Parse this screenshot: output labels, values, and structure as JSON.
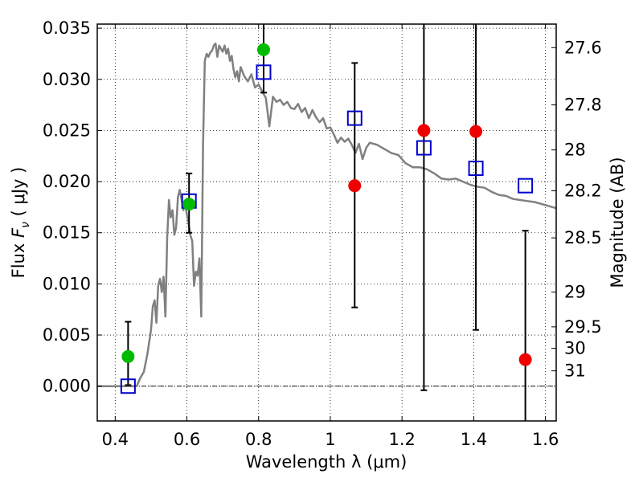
{
  "chart_data": {
    "type": "scatter",
    "xlabel": "Wavelength  λ (μm)",
    "ylabel": "Flux  F_ν ( μJy )",
    "ylabel_parts": {
      "prefix": "Flux  ",
      "symbol": "F",
      "subscript": "ν",
      "suffix": "  ( μJy )"
    },
    "y2label": "Magnitude (AB)",
    "xlim": [
      0.35,
      1.63
    ],
    "ylim": [
      -0.0034,
      0.0354
    ],
    "grid": true,
    "x_ticks": [
      0.4,
      0.6,
      0.8,
      1.0,
      1.2,
      1.4,
      1.6
    ],
    "x_tick_labels": [
      "0.4",
      "0.6",
      "0.8",
      "1",
      "1.2",
      "1.4",
      "1.6"
    ],
    "y_ticks": [
      0.0,
      0.005,
      0.01,
      0.015,
      0.02,
      0.025,
      0.03,
      0.035
    ],
    "y_tick_labels": [
      "0.000",
      "0.005",
      "0.010",
      "0.015",
      "0.020",
      "0.025",
      "0.030",
      "0.035"
    ],
    "y2_ticks": [
      {
        "label": "27.6",
        "flux": 0.0331
      },
      {
        "label": "27.8",
        "flux": 0.0275
      },
      {
        "label": "28",
        "flux": 0.0231
      },
      {
        "label": "28.2",
        "flux": 0.0191
      },
      {
        "label": "28.5",
        "flux": 0.0145
      },
      {
        "label": "29",
        "flux": 0.0092
      },
      {
        "label": "29.5",
        "flux": 0.0058
      },
      {
        "label": "30",
        "flux": 0.0037
      },
      {
        "label": "31",
        "flux": 0.0015
      }
    ],
    "zero_line": 0.0,
    "colors": {
      "sed": "#808080",
      "green": "#00bb00",
      "red": "#ee0000",
      "model": "#0000cc",
      "errorbar": "#000000",
      "grid": "#000000"
    },
    "series": [
      {
        "kind": "line",
        "points": [
          [
            0.35,
            0.0
          ],
          [
            0.46,
            0.0
          ],
          [
            0.47,
            0.0008
          ],
          [
            0.48,
            0.0014
          ],
          [
            0.49,
            0.0032
          ],
          [
            0.5,
            0.0055
          ],
          [
            0.505,
            0.0078
          ],
          [
            0.51,
            0.0084
          ],
          [
            0.515,
            0.0062
          ],
          [
            0.52,
            0.0098
          ],
          [
            0.525,
            0.0105
          ],
          [
            0.53,
            0.0092
          ],
          [
            0.535,
            0.0107
          ],
          [
            0.54,
            0.0068
          ],
          [
            0.545,
            0.0145
          ],
          [
            0.55,
            0.0182
          ],
          [
            0.555,
            0.0165
          ],
          [
            0.56,
            0.0172
          ],
          [
            0.565,
            0.0148
          ],
          [
            0.57,
            0.0155
          ],
          [
            0.575,
            0.0185
          ],
          [
            0.58,
            0.0192
          ],
          [
            0.585,
            0.0183
          ],
          [
            0.59,
            0.0172
          ],
          [
            0.595,
            0.0178
          ],
          [
            0.6,
            0.0168
          ],
          [
            0.605,
            0.0158
          ],
          [
            0.61,
            0.0147
          ],
          [
            0.615,
            0.0142
          ],
          [
            0.62,
            0.0098
          ],
          [
            0.625,
            0.0112
          ],
          [
            0.63,
            0.0108
          ],
          [
            0.635,
            0.0125
          ],
          [
            0.64,
            0.0068
          ],
          [
            0.645,
            0.0235
          ],
          [
            0.65,
            0.0318
          ],
          [
            0.655,
            0.0325
          ],
          [
            0.66,
            0.0322
          ],
          [
            0.665,
            0.0326
          ],
          [
            0.67,
            0.0328
          ],
          [
            0.675,
            0.0333
          ],
          [
            0.68,
            0.0335
          ],
          [
            0.685,
            0.0322
          ],
          [
            0.69,
            0.0333
          ],
          [
            0.695,
            0.033
          ],
          [
            0.7,
            0.0327
          ],
          [
            0.705,
            0.0333
          ],
          [
            0.71,
            0.0325
          ],
          [
            0.715,
            0.033
          ],
          [
            0.72,
            0.0318
          ],
          [
            0.725,
            0.0323
          ],
          [
            0.73,
            0.031
          ],
          [
            0.735,
            0.0302
          ],
          [
            0.74,
            0.0308
          ],
          [
            0.745,
            0.0298
          ],
          [
            0.75,
            0.0312
          ],
          [
            0.76,
            0.0303
          ],
          [
            0.77,
            0.0298
          ],
          [
            0.78,
            0.0305
          ],
          [
            0.79,
            0.0292
          ],
          [
            0.8,
            0.0295
          ],
          [
            0.81,
            0.0288
          ],
          [
            0.82,
            0.0282
          ],
          [
            0.83,
            0.0254
          ],
          [
            0.84,
            0.0283
          ],
          [
            0.85,
            0.0278
          ],
          [
            0.86,
            0.028
          ],
          [
            0.87,
            0.0275
          ],
          [
            0.88,
            0.0278
          ],
          [
            0.89,
            0.0272
          ],
          [
            0.9,
            0.0271
          ],
          [
            0.91,
            0.0276
          ],
          [
            0.92,
            0.0268
          ],
          [
            0.93,
            0.0272
          ],
          [
            0.94,
            0.0262
          ],
          [
            0.95,
            0.027
          ],
          [
            0.96,
            0.0263
          ],
          [
            0.97,
            0.0258
          ],
          [
            0.98,
            0.0262
          ],
          [
            0.99,
            0.0252
          ],
          [
            1.0,
            0.0253
          ],
          [
            1.01,
            0.0246
          ],
          [
            1.02,
            0.0238
          ],
          [
            1.03,
            0.0243
          ],
          [
            1.04,
            0.0239
          ],
          [
            1.05,
            0.0242
          ],
          [
            1.06,
            0.0236
          ],
          [
            1.07,
            0.0228
          ],
          [
            1.08,
            0.0237
          ],
          [
            1.09,
            0.0222
          ],
          [
            1.1,
            0.0233
          ],
          [
            1.11,
            0.0238
          ],
          [
            1.13,
            0.0236
          ],
          [
            1.15,
            0.0232
          ],
          [
            1.17,
            0.0228
          ],
          [
            1.19,
            0.0226
          ],
          [
            1.21,
            0.0218
          ],
          [
            1.23,
            0.0214
          ],
          [
            1.25,
            0.0214
          ],
          [
            1.27,
            0.0212
          ],
          [
            1.29,
            0.0208
          ],
          [
            1.31,
            0.0203
          ],
          [
            1.33,
            0.0202
          ],
          [
            1.35,
            0.0203
          ],
          [
            1.37,
            0.02
          ],
          [
            1.39,
            0.0197
          ],
          [
            1.41,
            0.0195
          ],
          [
            1.43,
            0.0194
          ],
          [
            1.45,
            0.019
          ],
          [
            1.47,
            0.0187
          ],
          [
            1.49,
            0.0186
          ],
          [
            1.51,
            0.0183
          ],
          [
            1.53,
            0.0182
          ],
          [
            1.55,
            0.0181
          ],
          [
            1.57,
            0.018
          ],
          [
            1.59,
            0.0178
          ],
          [
            1.61,
            0.0176
          ],
          [
            1.63,
            0.0174
          ]
        ]
      },
      {
        "kind": "errorbar",
        "color": "#000000",
        "bars": [
          {
            "x": 0.436,
            "low": 0.0001,
            "high": 0.0063
          },
          {
            "x": 0.606,
            "low": 0.015,
            "high": 0.0208
          },
          {
            "x": 0.814,
            "low": 0.0287,
            "high": 0.036
          },
          {
            "x": 1.068,
            "low": 0.0077,
            "high": 0.0316
          },
          {
            "x": 1.261,
            "low": -0.0004,
            "high": 0.036
          },
          {
            "x": 1.406,
            "low": 0.0055,
            "high": 0.036
          },
          {
            "x": 1.544,
            "low": -0.004,
            "high": 0.0152
          }
        ]
      },
      {
        "kind": "points",
        "marker": "open-square",
        "color": "#0000cc",
        "x": [
          0.436,
          0.606,
          0.814,
          1.068,
          1.261,
          1.406,
          1.544
        ],
        "y": [
          0.0,
          0.0181,
          0.0307,
          0.0262,
          0.0233,
          0.0213,
          0.0196
        ]
      },
      {
        "kind": "points",
        "marker": "filled-circle",
        "color": "#00bb00",
        "x": [
          0.436,
          0.606,
          0.814
        ],
        "y": [
          0.0029,
          0.0178,
          0.0329
        ]
      },
      {
        "kind": "points",
        "marker": "filled-circle",
        "color": "#ee0000",
        "x": [
          1.068,
          1.261,
          1.406,
          1.544
        ],
        "y": [
          0.0196,
          0.025,
          0.0249,
          0.0026
        ]
      }
    ]
  }
}
